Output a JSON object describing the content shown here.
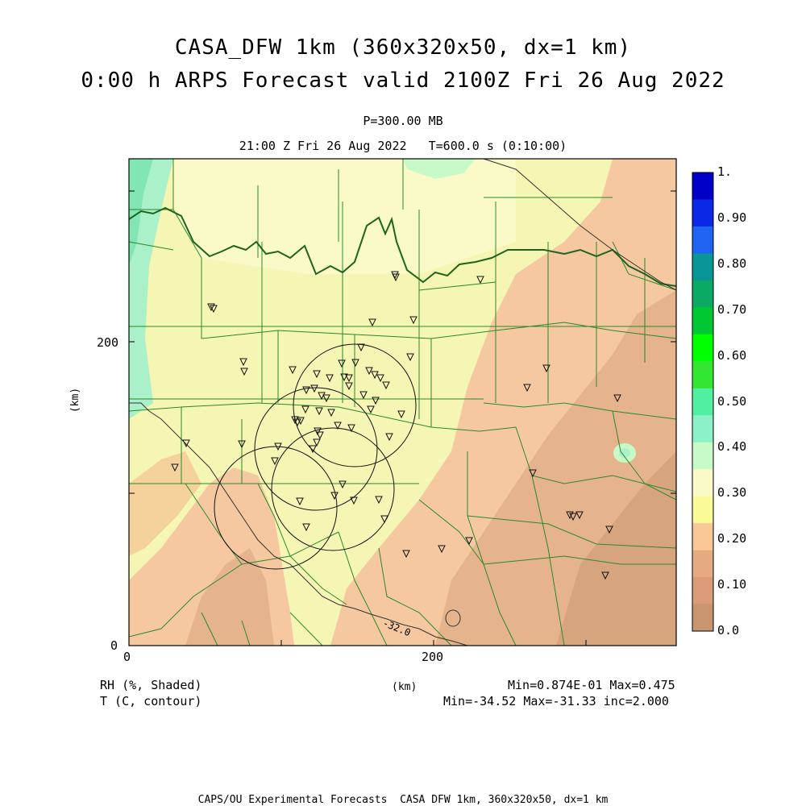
{
  "header": {
    "title_line1": "CASA_DFW 1km (360x320x50, dx=1 km)",
    "title_line2": "0:00 h ARPS Forecast valid 2100Z Fri 26 Aug 2022",
    "level": "P=300.00 MB",
    "valid_time": "21:00 Z Fri 26 Aug 2022   T=600.0 s (0:10:00)"
  },
  "axes": {
    "y_label": "(km)",
    "x_label": "(km)",
    "x_ticks": [
      "0",
      "200"
    ],
    "y_ticks": [
      "0",
      "200"
    ]
  },
  "colorbar": {
    "labels": [
      "1.",
      "0.90",
      "0.80",
      "0.70",
      "0.60",
      "0.50",
      "0.40",
      "0.30",
      "0.20",
      "0.10",
      "0.0"
    ],
    "colors": [
      "#0000c8",
      "#0a28e6",
      "#1e64f0",
      "#0a9696",
      "#0aaa64",
      "#00c832",
      "#00ff00",
      "#32e632",
      "#50f0a0",
      "#8cf0c8",
      "#c8fac8",
      "#fafac8",
      "#fafa96",
      "#fac896",
      "#e6aa82",
      "#dc9b78",
      "#c8966e"
    ]
  },
  "footer": {
    "field1": "RH (%, Shaded)",
    "field2": "T (C, contour)",
    "rh_range": "Min=0.874E-01 Max=0.475",
    "t_range": "Min=-34.52 Max=-31.33 inc=2.000",
    "credits": "CAPS/OU Experimental Forecasts  CASA DFW 1km, 360x320x50, dx=1 km"
  },
  "map": {
    "contour_label": "-32.0",
    "colors": {
      "dry": "#e6b48c",
      "drier": "#d7a57d",
      "mid": "#f5d29b",
      "moist": "#f5f5b4",
      "moister": "#fafac8",
      "wet": "#aaf0c8",
      "wetter": "#82e6b4",
      "county": "#2a8a2a",
      "river": "#1e641e"
    }
  }
}
